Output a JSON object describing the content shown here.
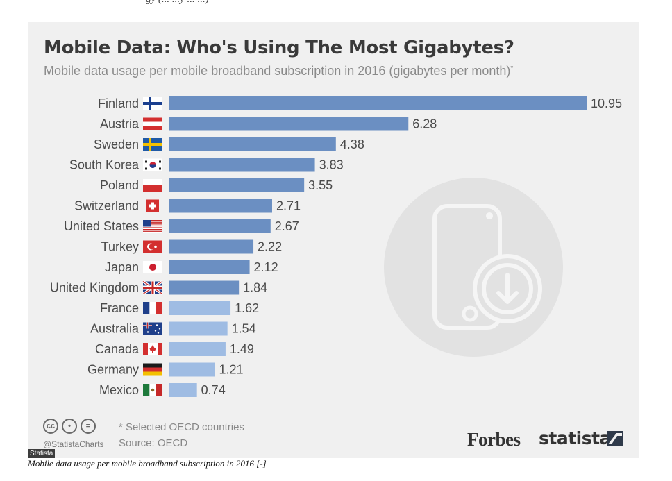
{
  "page_top_cut_text": "gy (... ...y ... ...)",
  "title": "Mobile Data: Who's Using The Most Gigabytes?",
  "subtitle": "Mobile data usage per mobile broadband subscription in 2016 (gigabytes per month)",
  "subtitle_mark": "*",
  "footer": {
    "note": "* Selected OECD countries",
    "source": "Source: OECD",
    "handle": "@StatistaCharts",
    "forbes": "Forbes",
    "statista": "statista",
    "cc_icons": [
      "cc-icon",
      "by-icon",
      "nd-icon"
    ]
  },
  "tag": "Statista",
  "caption": "Mobile data usage per mobile broadband subscription in 2016 [-]",
  "colors": {
    "bar_dark": "#6b8fc2",
    "bar_light": "#9fbce3",
    "card_bg": "#f0f0f0",
    "deco_circle": "#e2e2e2"
  },
  "chart_data": {
    "type": "bar",
    "orientation": "horizontal",
    "title": "Mobile Data: Who's Using The Most Gigabytes?",
    "subtitle": "Mobile data usage per mobile broadband subscription in 2016 (gigabytes per month)*",
    "categories": [
      "Finland",
      "Austria",
      "Sweden",
      "South Korea",
      "Poland",
      "Switzerland",
      "United States",
      "Turkey",
      "Japan",
      "United Kingdom",
      "France",
      "Australia",
      "Canada",
      "Germany",
      "Mexico"
    ],
    "values": [
      10.95,
      6.28,
      4.38,
      3.83,
      3.55,
      2.71,
      2.67,
      2.22,
      2.12,
      1.84,
      1.62,
      1.54,
      1.49,
      1.21,
      0.74
    ],
    "value_labels": [
      "10.95",
      "6.28",
      "4.38",
      "3.83",
      "3.55",
      "2.71",
      "2.67",
      "2.22",
      "2.12",
      "1.84",
      "1.62",
      "1.54",
      "1.49",
      "1.21",
      "0.74"
    ],
    "flags": [
      "finland-flag-icon",
      "austria-flag-icon",
      "sweden-flag-icon",
      "south-korea-flag-icon",
      "poland-flag-icon",
      "switzerland-flag-icon",
      "united-states-flag-icon",
      "turkey-flag-icon",
      "japan-flag-icon",
      "united-kingdom-flag-icon",
      "france-flag-icon",
      "australia-flag-icon",
      "canada-flag-icon",
      "germany-flag-icon",
      "mexico-flag-icon"
    ],
    "xlim": [
      0,
      10.95
    ],
    "grid": false,
    "legend": "none"
  }
}
